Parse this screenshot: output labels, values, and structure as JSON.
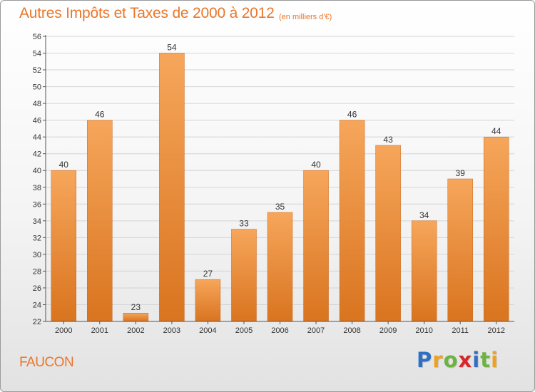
{
  "title": "Autres Impôts et Taxes de 2000 à 2012",
  "subtitle": "(en milliers d'€)",
  "commune": "FAUCON",
  "brand": {
    "text": "Proxiti",
    "letters": [
      "P",
      "r",
      "o",
      "x",
      "i",
      "t",
      "i"
    ],
    "colors": [
      "#2f6fc4",
      "#f0a020",
      "#6cb43f",
      "#d8262a",
      "#2f6fc4",
      "#6cb43f",
      "#f0a020"
    ]
  },
  "colors": {
    "accent": "#e8762a",
    "bar_top": "#f6a65b",
    "bar_bottom": "#d9741f",
    "grid": "#d4d4d4",
    "axis": "#555555"
  },
  "chart_data": {
    "type": "bar",
    "title": "Autres Impôts et Taxes de 2000 à 2012",
    "subtitle": "(en milliers d'€)",
    "categories": [
      "2000",
      "2001",
      "2002",
      "2003",
      "2004",
      "2005",
      "2006",
      "2007",
      "2008",
      "2009",
      "2010",
      "2011",
      "2012"
    ],
    "values": [
      40,
      46,
      23,
      54,
      27,
      33,
      35,
      40,
      46,
      43,
      34,
      39,
      44
    ],
    "ylim": [
      22,
      56
    ],
    "ytick_step": 2,
    "grid": true,
    "data_labels": true
  }
}
